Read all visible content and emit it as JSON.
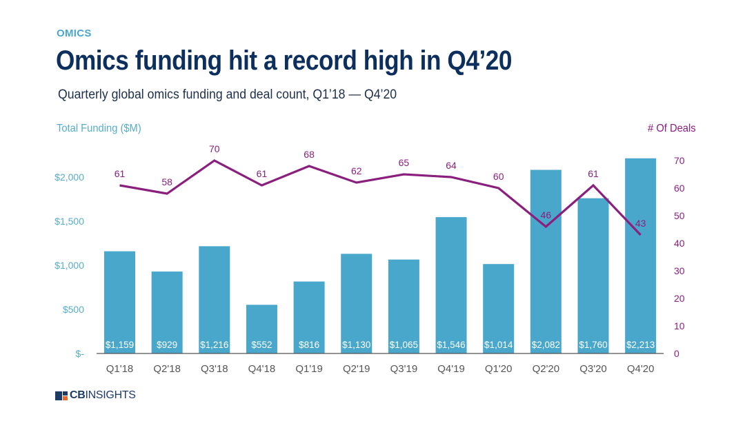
{
  "header": {
    "eyebrow": "OMICS",
    "title": "Omics funding hit a record high in Q4’20",
    "subtitle": "Quarterly global omics funding and deal count, Q1’18 — Q4’20"
  },
  "colors": {
    "bar": "#4aa7cc",
    "line": "#8a1f7e",
    "left_axis_text": "#57adc9",
    "right_axis_text": "#8a1f7e",
    "bar_label": "#ffffff",
    "category_text": "#555555",
    "baseline": "#555555"
  },
  "chart_data": {
    "type": "bar",
    "combo": "bar + line (dual axis)",
    "title": "Omics funding hit a record high in Q4’20",
    "subtitle": "Quarterly global omics funding and deal count, Q1’18 — Q4’20",
    "xlabel": "",
    "ylabel": "Total Funding ($M)",
    "ylabel_right": "# Of Deals",
    "categories": [
      "Q1'18",
      "Q2'18",
      "Q3'18",
      "Q4'18",
      "Q1'19",
      "Q2'19",
      "Q3'19",
      "Q4'19",
      "Q1'20",
      "Q2'20",
      "Q3'20",
      "Q4'20"
    ],
    "series": [
      {
        "name": "Total Funding ($M)",
        "type": "bar",
        "axis": "left",
        "values": [
          1159,
          929,
          1216,
          552,
          816,
          1130,
          1065,
          1546,
          1014,
          2082,
          1760,
          2213
        ],
        "labels": [
          "$1,159",
          "$929",
          "$1,216",
          "$552",
          "$816",
          "$1,130",
          "$1,065",
          "$1,546",
          "$1,014",
          "$2,082",
          "$1,760",
          "$2,213"
        ]
      },
      {
        "name": "# Of Deals",
        "type": "line",
        "axis": "right",
        "values": [
          61,
          58,
          70,
          61,
          68,
          62,
          65,
          64,
          60,
          46,
          61,
          43
        ]
      }
    ],
    "ylim": [
      0,
      2000
    ],
    "ylim_display_max": 2190,
    "yticks": [
      0,
      500,
      1000,
      1500,
      2000
    ],
    "ytick_labels": [
      "$-",
      "$500",
      "$1,000",
      "$1,500",
      "$2,000"
    ],
    "ylim_right": [
      0,
      70
    ],
    "yticks_right": [
      0,
      10,
      20,
      30,
      40,
      50,
      60,
      70
    ],
    "ytick_labels_right": [
      "0",
      "10",
      "20",
      "30",
      "40",
      "50",
      "60",
      "70"
    ],
    "grid": false,
    "legend": "none"
  },
  "footer": {
    "brand_bold": "CB",
    "brand_light": "INSIGHTS"
  }
}
